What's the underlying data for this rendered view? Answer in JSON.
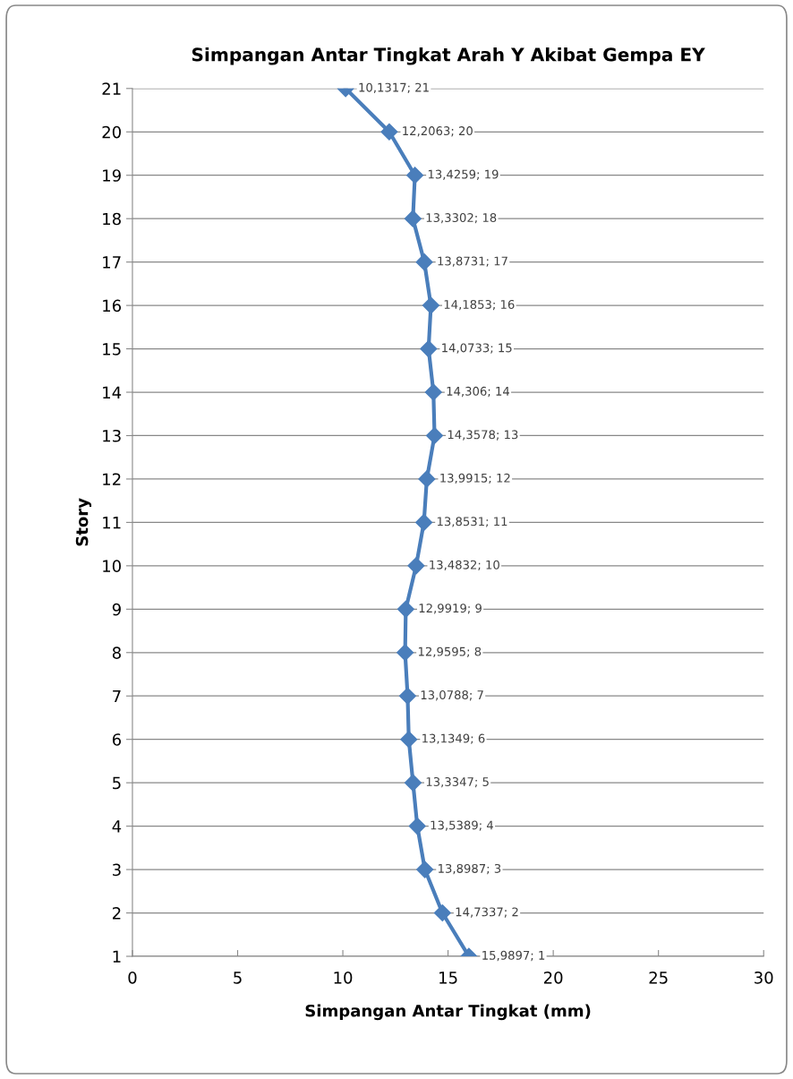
{
  "chart_data": {
    "type": "line",
    "title": "Simpangan Antar Tingkat Arah Y Akibat Gempa EY",
    "xlabel": "Simpangan Antar Tingkat (mm)",
    "ylabel": "Story",
    "series": [
      {
        "color": "#4a7ebb",
        "marker": "diamond",
        "line_style": "solid",
        "x": [
          15.9897,
          14.7337,
          13.8987,
          13.5389,
          13.3347,
          13.1349,
          13.0788,
          12.9595,
          12.9919,
          13.4832,
          13.8531,
          13.9915,
          14.3578,
          14.306,
          14.0733,
          14.1853,
          13.8731,
          13.3302,
          13.4259,
          12.2063,
          10.1317
        ],
        "values": [
          1,
          2,
          3,
          4,
          5,
          6,
          7,
          8,
          9,
          10,
          11,
          12,
          13,
          14,
          15,
          16,
          17,
          18,
          19,
          20,
          21
        ],
        "value_labels": [
          "15,9897; 1",
          "14,7337; 2",
          "13,8987; 3",
          "13,5389; 4",
          "13,3347; 5",
          "13,1349; 6",
          "13,0788; 7",
          "12,9595; 8",
          "12,9919; 9",
          "13,4832; 10",
          "13,8531; 11",
          "13,9915; 12",
          "14,3578; 13",
          "14,306; 14",
          "14,0733; 15",
          "14,1853; 16",
          "13,8731; 17",
          "13,3302; 18",
          "13,4259; 19",
          "12,2063; 20",
          "10,1317; 21"
        ]
      }
    ],
    "xlim": [
      0,
      30
    ],
    "xticks": [
      0,
      5,
      10,
      15,
      20,
      25,
      30
    ],
    "ylim": [
      1,
      21
    ],
    "yticks": [
      1,
      2,
      3,
      4,
      5,
      6,
      7,
      8,
      9,
      10,
      11,
      12,
      13,
      14,
      15,
      16,
      17,
      18,
      19,
      20,
      21
    ],
    "grid": "y",
    "legend": false
  }
}
